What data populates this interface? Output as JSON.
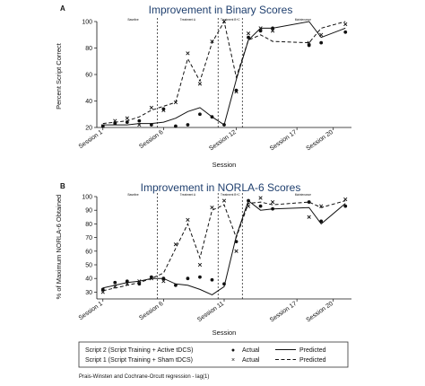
{
  "chart_data": [
    {
      "panel": "A",
      "type": "line",
      "title": "Improvement in Binary Scores",
      "ylabel": "Percent Script Correct",
      "xlabel": "Session",
      "ylim": [
        20,
        100
      ],
      "yticks": [
        20,
        40,
        60,
        80,
        100
      ],
      "xrange": [
        1,
        20
      ],
      "xticks": [
        {
          "x": 1,
          "label": "Session 1"
        },
        {
          "x": 6,
          "label": "Session 6"
        },
        {
          "x": 12,
          "label": "Session 12"
        },
        {
          "x": 17,
          "label": "Session 17"
        },
        {
          "x": 20,
          "label": "Session 20"
        }
      ],
      "phase_lines": [
        5.5,
        10.5,
        12.5
      ],
      "phases": [
        {
          "x": 3.5,
          "label": "Baseline"
        },
        {
          "x": 8.0,
          "label": "Treatment A"
        },
        {
          "x": 11.5,
          "label": "Treatment B+C"
        },
        {
          "x": 17.5,
          "label": "Maintenance"
        }
      ],
      "series": [
        {
          "name": "Script 2 (Script Training + Active tDCS)",
          "kind": "actual",
          "x": [
            1,
            2,
            3,
            4,
            5,
            6,
            7,
            8,
            9,
            10,
            11,
            12,
            13,
            14,
            15,
            18,
            19,
            21
          ],
          "y": [
            21,
            23,
            24,
            25,
            22,
            34,
            21,
            22,
            30,
            28,
            22,
            48,
            88,
            93,
            95,
            82,
            84,
            92
          ]
        },
        {
          "name": "Script 2 (Script Training + Active tDCS)",
          "kind": "predicted",
          "x": [
            1,
            2,
            3,
            4,
            5,
            6,
            7,
            8,
            9,
            10,
            11,
            12,
            13,
            14,
            15,
            18,
            19,
            21
          ],
          "y": [
            22,
            22,
            22,
            23,
            23,
            24,
            27,
            32,
            35,
            28,
            22,
            56,
            86,
            95,
            95,
            100,
            88,
            95
          ]
        },
        {
          "name": "Script 1 (Script Training + Sham tDCS)",
          "kind": "actual",
          "x": [
            1,
            2,
            3,
            4,
            5,
            6,
            7,
            8,
            9,
            10,
            11,
            12,
            13,
            14,
            15,
            18,
            19,
            21
          ],
          "y": [
            21,
            25,
            27,
            22,
            35,
            33,
            39,
            76,
            53,
            85,
            100,
            47,
            91,
            95,
            93,
            84,
            90,
            98
          ]
        },
        {
          "name": "Script 1 (Script Training + Sham tDCS)",
          "kind": "predicted",
          "x": [
            1,
            2,
            3,
            4,
            5,
            6,
            7,
            8,
            9,
            10,
            11,
            12,
            13,
            14,
            15,
            18,
            19,
            21
          ],
          "y": [
            23,
            24,
            25,
            28,
            33,
            36,
            39,
            72,
            55,
            84,
            100,
            58,
            86,
            90,
            85,
            84,
            95,
            100
          ]
        }
      ]
    },
    {
      "panel": "B",
      "type": "line",
      "title": "Improvement in NORLA-6 Scores",
      "ylabel": "% of Maximum NORLA-6 Obtained",
      "xlabel": "Session",
      "ylim": [
        25,
        100
      ],
      "yticks": [
        30,
        40,
        50,
        60,
        70,
        80,
        90,
        100
      ],
      "xrange": [
        1,
        20
      ],
      "xticks": [
        {
          "x": 1,
          "label": "Session 1"
        },
        {
          "x": 6,
          "label": "Session 6"
        },
        {
          "x": 11,
          "label": "Session 11"
        },
        {
          "x": 17,
          "label": "Session 17"
        },
        {
          "x": 20,
          "label": "Session 20"
        }
      ],
      "phase_lines": [
        5.5,
        10.5,
        12.5
      ],
      "phases": [
        {
          "x": 3.5,
          "label": "Baseline"
        },
        {
          "x": 8.0,
          "label": "Treatment A"
        },
        {
          "x": 11.5,
          "label": "Treatment B+C"
        },
        {
          "x": 17.5,
          "label": "Maintenance"
        }
      ],
      "series": [
        {
          "name": "Script 2 (Script Training + Active tDCS)",
          "kind": "actual",
          "x": [
            1,
            2,
            3,
            4,
            5,
            6,
            7,
            8,
            9,
            10,
            11,
            12,
            13,
            14,
            15,
            18,
            19,
            21
          ],
          "y": [
            32,
            37,
            38,
            36,
            41,
            40,
            35,
            40,
            41,
            39,
            36,
            67,
            97,
            93,
            91,
            96,
            82,
            93
          ]
        },
        {
          "name": "Script 2 (Script Training + Active tDCS)",
          "kind": "predicted",
          "x": [
            1,
            2,
            3,
            4,
            5,
            6,
            7,
            8,
            9,
            10,
            11,
            12,
            13,
            14,
            15,
            18,
            19,
            21
          ],
          "y": [
            33,
            35,
            37,
            38,
            40,
            40,
            36,
            35,
            32,
            28,
            34,
            71,
            97,
            90,
            91,
            92,
            80,
            95
          ]
        },
        {
          "name": "Script 1 (Script Training + Sham tDCS)",
          "kind": "actual",
          "x": [
            1,
            2,
            3,
            4,
            5,
            6,
            7,
            8,
            9,
            10,
            11,
            12,
            13,
            14,
            15,
            18,
            19,
            21
          ],
          "y": [
            30,
            34,
            36,
            38,
            40,
            38,
            65,
            83,
            50,
            92,
            97,
            60,
            93,
            99,
            96,
            85,
            93,
            98
          ]
        },
        {
          "name": "Script 1 (Script Training + Sham tDCS)",
          "kind": "predicted",
          "x": [
            1,
            2,
            3,
            4,
            5,
            6,
            7,
            8,
            9,
            10,
            11,
            12,
            13,
            14,
            15,
            18,
            19,
            21
          ],
          "y": [
            31,
            33,
            35,
            37,
            40,
            44,
            62,
            80,
            55,
            90,
            94,
            70,
            95,
            96,
            94,
            96,
            92,
            97
          ]
        }
      ]
    }
  ],
  "legend": {
    "rows": [
      {
        "label": "Script 2 (Script Training + Active tDCS)",
        "actual": "Actual",
        "predicted": "Predicted",
        "marker": "●",
        "line": "solid"
      },
      {
        "label": "Script 1 (Script Training + Sham tDCS)",
        "actual": "Actual",
        "predicted": "Predicted",
        "marker": "×",
        "line": "dashed"
      }
    ]
  },
  "footnote": "Prais-Winsten and Cochrane-Orcutt regression - lag(1)"
}
